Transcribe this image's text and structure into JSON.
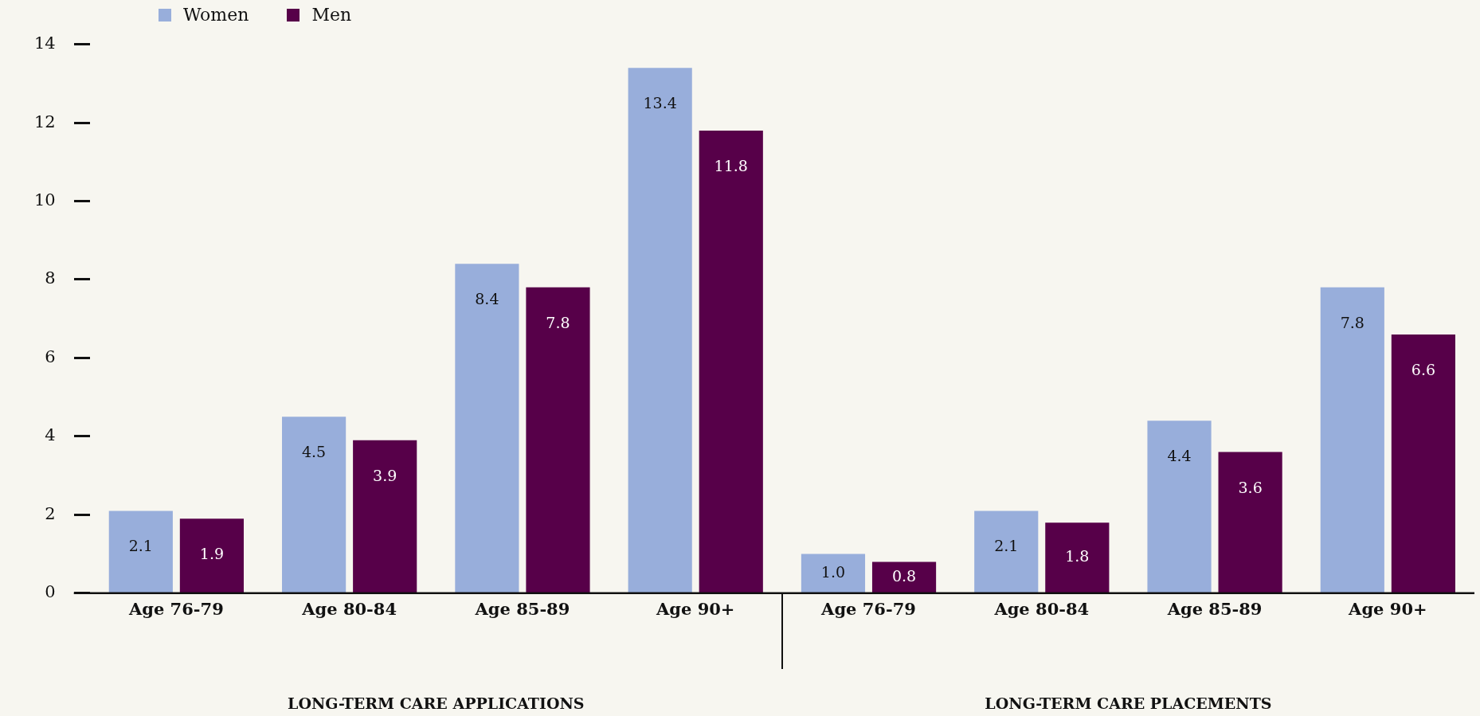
{
  "chart_data": {
    "type": "bar",
    "categories": [
      "Age 76-79",
      "Age 80-84",
      "Age 85-89",
      "Age 90+",
      "Age 76-79",
      "Age 80-84",
      "Age 85-89",
      "Age 90+"
    ],
    "series": [
      {
        "name": "Women",
        "color": "#98aedb",
        "values": [
          2.1,
          4.5,
          8.4,
          13.4,
          1.0,
          2.1,
          4.4,
          7.8
        ],
        "value_labels": [
          "2.1",
          "4.5",
          "8.4",
          "13.4",
          "1.0",
          "2.1",
          "4.4",
          "7.8"
        ]
      },
      {
        "name": "Men",
        "color": "#570049",
        "values": [
          1.9,
          3.9,
          7.8,
          11.8,
          0.8,
          1.8,
          3.6,
          6.6
        ],
        "value_labels": [
          "1.9",
          "3.9",
          "7.8",
          "11.8",
          "0.8",
          "1.8",
          "3.6",
          "6.6"
        ]
      }
    ],
    "ylim": [
      0,
      14
    ],
    "yticks": [
      0,
      2,
      4,
      6,
      8,
      10,
      12,
      14
    ],
    "legend": "top left",
    "annotations": [
      "LONG-TERM CARE APPLICATIONS",
      "LONG-TERM CARE PLACEMENTS"
    ]
  }
}
